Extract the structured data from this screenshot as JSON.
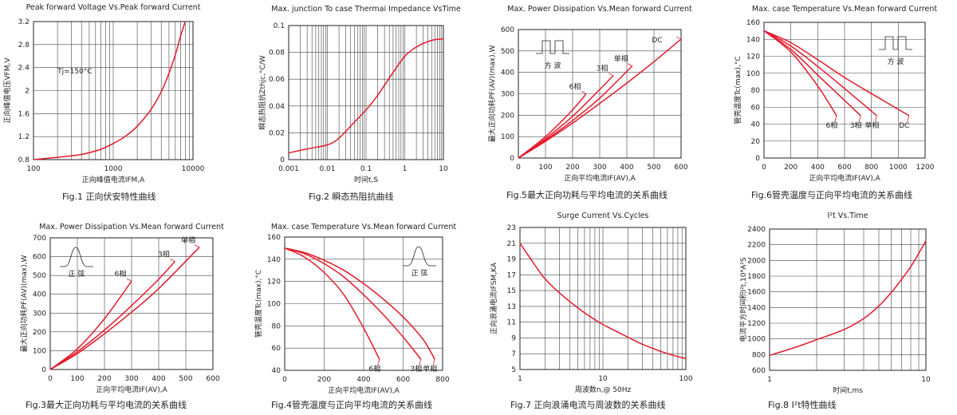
{
  "chart_data": [
    {
      "id": "fig1",
      "type": "line",
      "title": "Peak forward Voltage Vs.Peak forward Current",
      "caption": "Fig.1 正向伏安特性曲线",
      "xlabel": "正向峰值电流IFM,A",
      "ylabel": "正向峰值电压VFM,V",
      "xscale": "log",
      "xlim": [
        100,
        10000
      ],
      "ylim": [
        0.8,
        3.2
      ],
      "xticks": [
        100,
        1000,
        10000
      ],
      "xtick_labels": [
        "100",
        "1000",
        "10000"
      ],
      "yticks": [
        0.8,
        1.2,
        1.6,
        2.0,
        2.4,
        2.8,
        3.2
      ],
      "ytick_labels": [
        "0.8",
        "1.2",
        "1.6",
        "2",
        "2.4",
        "2.8",
        "3.2"
      ],
      "annotations": [
        {
          "text": "Tj=150°C",
          "x": 200,
          "y": 2.3
        }
      ],
      "series": [
        {
          "x": [
            100,
            200,
            400,
            700,
            1000,
            1400,
            2000,
            3000,
            4000,
            5000,
            6000,
            7000,
            8000
          ],
          "y": [
            0.8,
            0.84,
            0.89,
            0.98,
            1.08,
            1.2,
            1.38,
            1.68,
            1.98,
            2.3,
            2.62,
            2.95,
            3.2
          ]
        }
      ]
    },
    {
      "id": "fig2",
      "type": "line",
      "title": "Max. junction To case Thermai Impedance VsTime",
      "caption": "Fig.2 瞬态热阻抗曲线",
      "xlabel": "时间t,S",
      "ylabel": "瞬态热阻抗Zthjc,°C/W",
      "xscale": "log",
      "xlim": [
        0.001,
        10
      ],
      "ylim": [
        0,
        0.1
      ],
      "xticks": [
        0.001,
        0.01,
        0.1,
        1,
        10
      ],
      "xtick_labels": [
        "0.001",
        "0.01",
        "0.1",
        "1",
        "10"
      ],
      "yticks": [
        0,
        0.02,
        0.04,
        0.06,
        0.08,
        0.1
      ],
      "ytick_labels": [
        "0",
        "0.02",
        "0.04",
        "0.06",
        "0.08",
        "0.1"
      ],
      "series": [
        {
          "x": [
            0.001,
            0.003,
            0.01,
            0.02,
            0.05,
            0.1,
            0.2,
            0.5,
            1,
            2,
            5,
            10
          ],
          "y": [
            0.005,
            0.008,
            0.011,
            0.016,
            0.028,
            0.037,
            0.048,
            0.065,
            0.077,
            0.084,
            0.089,
            0.09
          ]
        }
      ]
    },
    {
      "id": "fig5",
      "type": "line",
      "title": "Max. Power Dissipation Vs.Mean forward Current",
      "caption": "Fig.5最大正向功耗与平均电流的关系曲线",
      "xlabel": "正向平均电流IF(AV),A",
      "ylabel": "最大正向功耗PF(AV)(max),W",
      "xlim": [
        0,
        600
      ],
      "ylim": [
        0,
        600
      ],
      "xticks": [
        0,
        100,
        200,
        300,
        400,
        500,
        600
      ],
      "xtick_labels": [
        "0",
        "100",
        "200",
        "300",
        "400",
        "500",
        "600"
      ],
      "yticks": [
        0,
        100,
        200,
        300,
        400,
        500,
        600
      ],
      "ytick_labels": [
        "0",
        "100",
        "200",
        "300",
        "400",
        "500",
        "600"
      ],
      "inset": {
        "type": "square-wave",
        "label": "方    波"
      },
      "series": [
        {
          "name": "6相",
          "x": [
            0,
            100,
            200,
            250
          ],
          "y": [
            0,
            100,
            225,
            300
          ]
        },
        {
          "name": "3相",
          "x": [
            0,
            100,
            200,
            300,
            350
          ],
          "y": [
            0,
            90,
            195,
            320,
            385
          ]
        },
        {
          "name": "单相",
          "x": [
            0,
            100,
            200,
            300,
            420
          ],
          "y": [
            0,
            83,
            175,
            280,
            430
          ]
        },
        {
          "name": "DC",
          "x": [
            0,
            100,
            200,
            300,
            400,
            500,
            600
          ],
          "y": [
            0,
            78,
            163,
            255,
            350,
            450,
            555
          ]
        }
      ]
    },
    {
      "id": "fig6",
      "type": "line",
      "title": "Max. case Temperature Vs.Mean forward Current",
      "caption": "Fig.6管壳温度与正向平均电流的关系曲线",
      "xlabel": "正向平均电流IF(AV),A",
      "ylabel": "管壳温度Tc(max),°C",
      "xlim": [
        0,
        1200
      ],
      "ylim": [
        0,
        160
      ],
      "xticks": [
        0,
        200,
        400,
        600,
        800,
        1000,
        1200
      ],
      "xtick_labels": [
        "0",
        "200",
        "400",
        "600",
        "800",
        "1000",
        "1200"
      ],
      "yticks": [
        0,
        20,
        40,
        60,
        80,
        100,
        120,
        140,
        160
      ],
      "ytick_labels": [
        "0",
        "20",
        "40",
        "60",
        "80",
        "100",
        "120",
        "140",
        "160"
      ],
      "inset": {
        "type": "square-wave",
        "label": "方    波"
      },
      "series": [
        {
          "name": "6相",
          "x": [
            0,
            200,
            400,
            540
          ],
          "y": [
            150,
            125,
            85,
            50
          ]
        },
        {
          "name": "3相",
          "x": [
            0,
            200,
            400,
            600,
            720
          ],
          "y": [
            150,
            128,
            98,
            68,
            50
          ]
        },
        {
          "name": "单相",
          "x": [
            0,
            200,
            400,
            600,
            840
          ],
          "y": [
            150,
            132,
            108,
            82,
            50
          ]
        },
        {
          "name": "DC",
          "x": [
            0,
            200,
            400,
            600,
            800,
            1080
          ],
          "y": [
            150,
            136,
            116,
            95,
            76,
            50
          ]
        }
      ]
    },
    {
      "id": "fig3",
      "type": "line",
      "title": "Max. Power Dissipation Vs.Mean forward Current",
      "caption": "Fig.3最大正向功耗与平均电流的关系曲线",
      "xlabel": "正向平均电流IF(AV),A",
      "ylabel": "最大正向功耗PF(AV)(max),W",
      "xlim": [
        0,
        600
      ],
      "ylim": [
        0,
        700
      ],
      "xticks": [
        0,
        100,
        200,
        300,
        400,
        500,
        600
      ],
      "xtick_labels": [
        "0",
        "100",
        "200",
        "300",
        "400",
        "500",
        "600"
      ],
      "yticks": [
        0,
        100,
        200,
        300,
        400,
        500,
        600,
        700
      ],
      "ytick_labels": [
        "0",
        "100",
        "200",
        "300",
        "400",
        "500",
        "600",
        "700"
      ],
      "inset": {
        "type": "sine-wave",
        "label": "正    弦"
      },
      "series": [
        {
          "name": "6相",
          "x": [
            0,
            100,
            200,
            300
          ],
          "y": [
            0,
            110,
            270,
            470
          ]
        },
        {
          "name": "3相",
          "x": [
            0,
            100,
            200,
            300,
            400,
            460
          ],
          "y": [
            0,
            95,
            210,
            340,
            480,
            575
          ]
        },
        {
          "name": "单相",
          "x": [
            0,
            100,
            200,
            300,
            400,
            550
          ],
          "y": [
            0,
            85,
            190,
            305,
            430,
            650
          ]
        }
      ]
    },
    {
      "id": "fig4",
      "type": "line",
      "title": "Max. case Temperature Vs.Mean forward Current",
      "caption": "Fig.4管壳温度与正向平均电流的关系曲线",
      "xlabel": "正向平均电流IF(AV),A",
      "ylabel": "管壳温度Tc(max),°C",
      "xlim": [
        0,
        800
      ],
      "ylim": [
        40,
        160
      ],
      "xticks": [
        0,
        200,
        400,
        600,
        800
      ],
      "xtick_labels": [
        "0",
        "200",
        "400",
        "600",
        "800"
      ],
      "yticks": [
        40,
        60,
        80,
        100,
        120,
        140,
        160
      ],
      "ytick_labels": [
        "40",
        "60",
        "80",
        "100",
        "120",
        "140",
        "160"
      ],
      "inset": {
        "type": "sine-wave",
        "label": "正    弦"
      },
      "series": [
        {
          "name": "6相",
          "x": [
            0,
            100,
            200,
            300,
            400,
            480
          ],
          "y": [
            150,
            142,
            128,
            108,
            78,
            50
          ]
        },
        {
          "name": "3相",
          "x": [
            0,
            100,
            200,
            300,
            400,
            500,
            600,
            690
          ],
          "y": [
            150,
            145,
            136,
            124,
            108,
            90,
            70,
            50
          ]
        },
        {
          "name": "单相",
          "x": [
            0,
            100,
            200,
            300,
            400,
            500,
            600,
            700,
            760
          ],
          "y": [
            150,
            146,
            139,
            130,
            118,
            104,
            88,
            68,
            50
          ]
        }
      ]
    },
    {
      "id": "fig7",
      "type": "line",
      "title": "Surge Current Vs.Cycles",
      "caption": "Fig.7 正向浪涌电流与周波数的关系曲线",
      "xlabel": "周波数n,@ 50Hz",
      "ylabel": "正向浪涌电流IFSM,KA",
      "xscale": "log",
      "xlim": [
        1,
        100
      ],
      "ylim": [
        5,
        23
      ],
      "xticks": [
        1,
        10,
        100
      ],
      "xtick_labels": [
        "1",
        "10",
        "100"
      ],
      "yticks": [
        5,
        7,
        9,
        11,
        13,
        15,
        17,
        19,
        21,
        23
      ],
      "ytick_labels": [
        "5",
        "7",
        "9",
        "11",
        "13",
        "15",
        "17",
        "19",
        "21",
        "23"
      ],
      "series": [
        {
          "x": [
            1,
            1.5,
            2,
            3,
            5,
            7,
            10,
            20,
            30,
            50,
            70,
            100
          ],
          "y": [
            21,
            18.3,
            16.5,
            14.7,
            12.8,
            11.7,
            10.7,
            9.1,
            8.2,
            7.3,
            6.8,
            6.4
          ]
        }
      ]
    },
    {
      "id": "fig8",
      "type": "line",
      "title": "I²t Vs.Time",
      "caption": "Fig.8 I²t特性曲线",
      "xlabel": "时间t,ms",
      "ylabel": "电流平方时间积I²t,10⁴A²S",
      "xscale": "log",
      "xlim": [
        1,
        10
      ],
      "ylim": [
        600,
        2400
      ],
      "xticks": [
        1,
        10
      ],
      "xtick_labels": [
        "1",
        "10"
      ],
      "yticks": [
        600,
        800,
        1000,
        1200,
        1400,
        1600,
        1800,
        2000,
        2200,
        2400
      ],
      "ytick_labels": [
        "600",
        "800",
        "1000",
        "1200",
        "1400",
        "1600",
        "1800",
        "2000",
        "2200",
        "2400"
      ],
      "series": [
        {
          "x": [
            1,
            1.5,
            2,
            3,
            4,
            5,
            6,
            7,
            8,
            9,
            10
          ],
          "y": [
            790,
            900,
            990,
            1120,
            1260,
            1420,
            1590,
            1760,
            1920,
            2090,
            2250
          ]
        }
      ]
    }
  ]
}
